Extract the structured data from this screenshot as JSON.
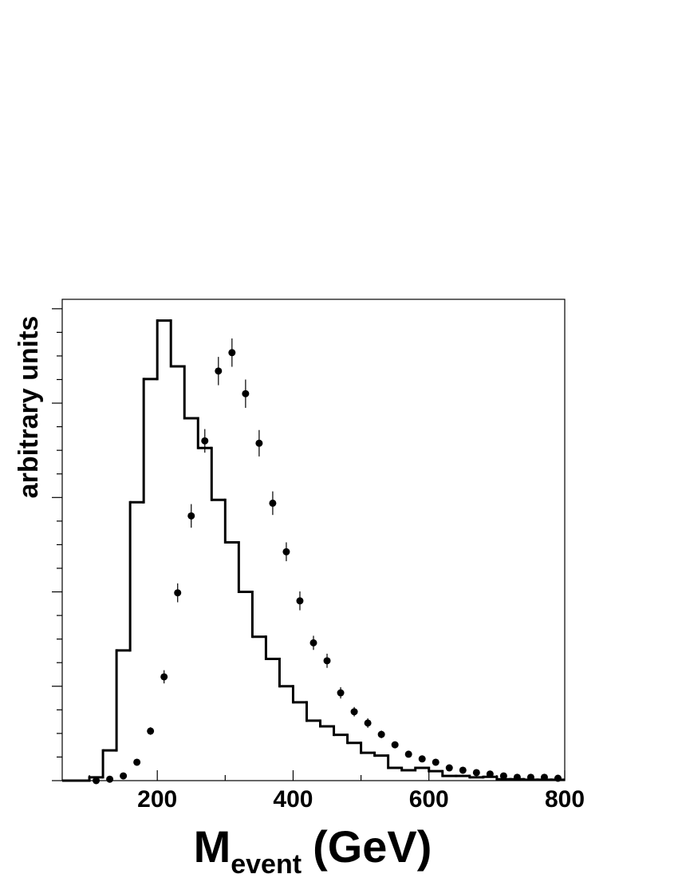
{
  "chart_data": {
    "type": "histogram",
    "x_label": {
      "main": "M",
      "subscript": "event",
      "unit": "(GeV)"
    },
    "y_label": "arbitrary units",
    "bins": [
      60,
      80,
      100,
      120,
      140,
      160,
      180,
      200,
      220,
      240,
      260,
      280,
      300,
      320,
      340,
      360,
      380,
      400,
      420,
      440,
      460,
      480,
      500,
      520,
      540,
      560,
      580,
      600,
      620,
      640,
      660,
      680,
      700,
      720,
      740,
      760,
      780,
      800
    ],
    "counts": [
      0,
      0,
      0.7,
      6.4,
      27.6,
      59.0,
      85.1,
      97.5,
      87.8,
      76.8,
      70.5,
      59.5,
      50.5,
      40.0,
      30.5,
      25.8,
      20.0,
      16.6,
      12.7,
      11.5,
      9.7,
      8.0,
      5.9,
      5.3,
      2.7,
      2.2,
      2.7,
      2.0,
      1.0,
      1.0,
      0.7,
      0.8,
      0.3,
      0.3,
      0.2,
      0.2,
      0.2
    ],
    "color": "#000000",
    "points": {
      "x": [
        110,
        130,
        150,
        170,
        190,
        210,
        230,
        250,
        270,
        290,
        310,
        330,
        350,
        370,
        390,
        410,
        430,
        450,
        470,
        490,
        510,
        530,
        550,
        570,
        590,
        610,
        630,
        650,
        670,
        690,
        710,
        730,
        750,
        770,
        790
      ],
      "values": [
        0,
        0.3,
        1.0,
        3.9,
        10.5,
        22.0,
        39.8,
        56.1,
        72.0,
        86.8,
        90.7,
        82.0,
        71.5,
        58.8,
        48.5,
        38.1,
        29.2,
        25.4,
        18.6,
        14.6,
        12.2,
        9.8,
        7.6,
        5.6,
        4.6,
        3.9,
        2.7,
        2.2,
        1.7,
        1.4,
        1.0,
        0.7,
        0.7,
        0.7,
        0.5
      ],
      "errors": [
        0.2,
        0.2,
        0.3,
        0.5,
        0.8,
        1.4,
        2.0,
        2.5,
        2.5,
        3.0,
        3.0,
        3.0,
        2.8,
        2.5,
        2.0,
        2.0,
        1.5,
        1.5,
        1.2,
        1.0,
        1.0,
        0.8,
        0.7,
        0.6,
        0.5,
        0.5,
        0.4,
        0.4,
        0.3,
        0.3,
        0.3,
        0.2,
        0.2,
        0.2,
        0.2
      ],
      "color": "#000000"
    },
    "xlim": [
      60,
      800
    ],
    "xticks": [
      200,
      400,
      600,
      800
    ],
    "xminorticks": [
      100,
      300,
      500,
      700
    ],
    "ylim": [
      0,
      102
    ],
    "yticks": [
      0,
      20,
      40,
      60,
      80,
      100
    ],
    "yminorticks": [
      5,
      10,
      15,
      25,
      30,
      35,
      45,
      50,
      55,
      65,
      70,
      75,
      85,
      90,
      95
    ]
  }
}
